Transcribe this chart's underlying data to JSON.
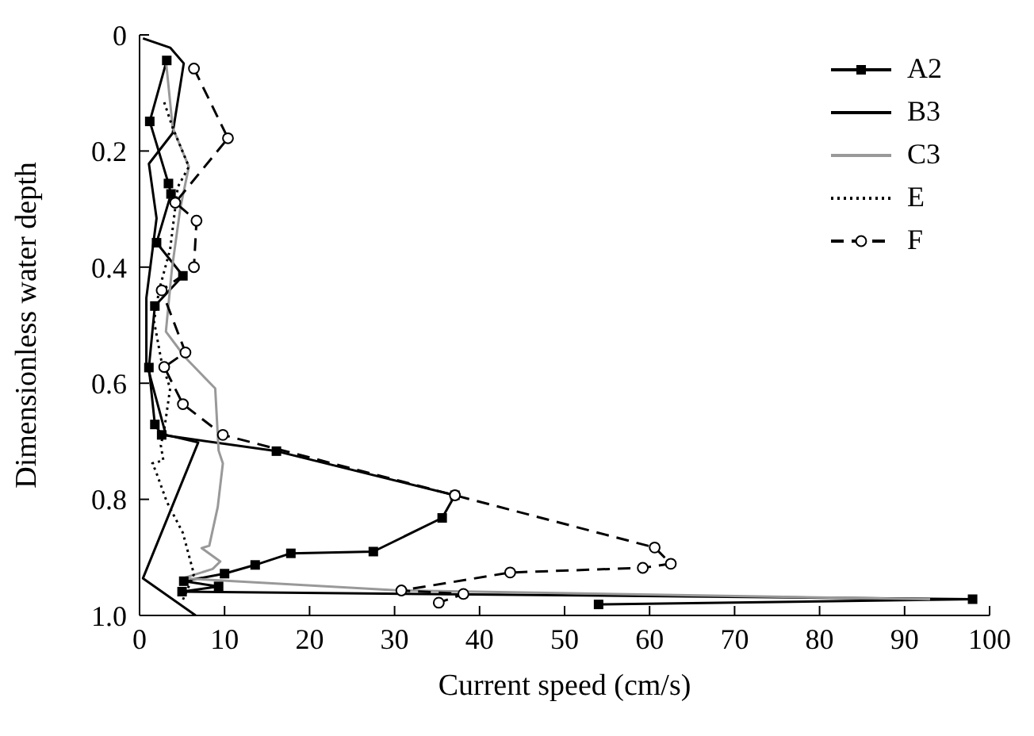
{
  "chart_data": {
    "type": "line",
    "xlabel": "Current speed (cm/s)",
    "ylabel": "Dimensionless water depth",
    "xlim": [
      0,
      100
    ],
    "xticks": [
      0,
      10,
      20,
      30,
      40,
      50,
      60,
      70,
      80,
      90,
      100
    ],
    "ylim": [
      1,
      0
    ],
    "yticks": [
      0,
      0.2,
      0.4,
      0.6,
      0.8,
      {
        "value": 1,
        "label": "1.0"
      }
    ],
    "legend": "top right",
    "series": [
      {
        "name": "A2",
        "color": "#000000",
        "marker": "square",
        "line_style": "solid",
        "x": [
          3.2,
          1.2,
          3.4,
          3.7,
          2.0,
          5.1,
          1.8,
          1.1,
          1.8,
          2.6,
          16.1,
          37.1,
          35.6,
          27.5,
          17.8,
          13.6,
          10.0,
          5.2,
          9.3,
          5.0,
          98,
          54
        ],
        "values": [
          0.044,
          0.149,
          0.256,
          0.274,
          0.358,
          0.415,
          0.467,
          0.573,
          0.671,
          0.689,
          0.717,
          0.793,
          0.832,
          0.89,
          0.893,
          0.913,
          0.928,
          0.941,
          0.95,
          0.959,
          0.972,
          0.981
        ]
      },
      {
        "name": "B3",
        "color": "#000000",
        "marker": "none",
        "line_style": "solid",
        "x": [
          0.4,
          3.6,
          5.2,
          3.9,
          1.1,
          2.0,
          0.8,
          0.8,
          3.1,
          6.9,
          0.4,
          6.6
        ],
        "values": [
          0.006,
          0.022,
          0.049,
          0.169,
          0.222,
          0.316,
          0.453,
          0.564,
          0.689,
          0.702,
          0.936,
          1.0
        ]
      },
      {
        "name": "C3",
        "color": "#999999",
        "marker": "none",
        "line_style": "solid",
        "x": [
          3.1,
          3.9,
          5.8,
          4.8,
          3.8,
          3.1,
          5.4,
          8.9,
          9.3,
          9.8,
          9.2,
          8.2,
          7.3,
          9.5,
          8.6,
          5.1,
          30.6,
          93
        ],
        "values": [
          0.044,
          0.16,
          0.227,
          0.298,
          0.404,
          0.511,
          0.556,
          0.609,
          0.716,
          0.738,
          0.813,
          0.88,
          0.884,
          0.907,
          0.92,
          0.936,
          0.957,
          0.972
        ]
      },
      {
        "name": "E",
        "color": "#000000",
        "marker": "none",
        "line_style": "dotted",
        "x": [
          2.9,
          3.9,
          5.8,
          4.5,
          3.6,
          2.3,
          1.7,
          2.6,
          3.6,
          2.9,
          2.5,
          2.8,
          1.5,
          1.9,
          3.2,
          5.1,
          6.4,
          5.1
        ],
        "values": [
          0.116,
          0.16,
          0.227,
          0.262,
          0.369,
          0.44,
          0.493,
          0.564,
          0.609,
          0.68,
          0.707,
          0.733,
          0.738,
          0.751,
          0.804,
          0.858,
          0.929,
          0.973
        ]
      },
      {
        "name": "F",
        "color": "#000000",
        "marker": "circle",
        "line_style": "dashed",
        "x": [
          6.4,
          10.4,
          4.2,
          6.7,
          6.4,
          2.6,
          5.4,
          2.9,
          5.1,
          9.8,
          37.1,
          60.6,
          62.5,
          59.2,
          43.6,
          30.8,
          38.1,
          35.2
        ],
        "values": [
          0.058,
          0.178,
          0.289,
          0.32,
          0.4,
          0.44,
          0.547,
          0.572,
          0.636,
          0.689,
          0.793,
          0.883,
          0.911,
          0.918,
          0.926,
          0.957,
          0.963,
          0.978
        ]
      }
    ]
  }
}
